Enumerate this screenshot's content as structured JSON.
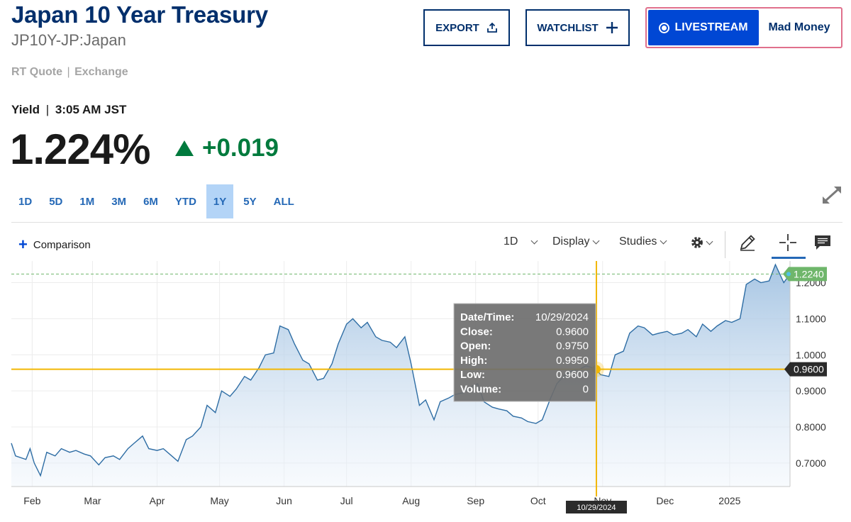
{
  "header": {
    "title": "Japan 10 Year Treasury",
    "symbol": "JP10Y-JP:Japan",
    "rt_quote": "RT Quote",
    "exchange": "Exchange"
  },
  "actions": {
    "export_label": "EXPORT",
    "watchlist_label": "WATCHLIST",
    "livestream_label": "LIVESTREAM",
    "show_name": "Mad Money"
  },
  "quote": {
    "label": "Yield",
    "time": "3:05 AM JST",
    "value": "1.224%",
    "change": "+0.019",
    "change_color": "#007a3d"
  },
  "ranges": [
    {
      "label": "1D",
      "active": false
    },
    {
      "label": "5D",
      "active": false
    },
    {
      "label": "1M",
      "active": false
    },
    {
      "label": "3M",
      "active": false
    },
    {
      "label": "6M",
      "active": false
    },
    {
      "label": "YTD",
      "active": false
    },
    {
      "label": "1Y",
      "active": true
    },
    {
      "label": "5Y",
      "active": false
    },
    {
      "label": "ALL",
      "active": false
    }
  ],
  "toolbar": {
    "comparison_label": "Comparison",
    "interval_label": "1D",
    "display_label": "Display",
    "studies_label": "Studies",
    "icons": [
      "gear-icon",
      "pencil-icon",
      "crosshair-icon",
      "comment-icon"
    ]
  },
  "tooltip": {
    "rows": [
      {
        "label": "Date/Time:",
        "value": "10/29/2024"
      },
      {
        "label": "Close:",
        "value": "0.9600"
      },
      {
        "label": "Open:",
        "value": "0.9750"
      },
      {
        "label": "High:",
        "value": "0.9950"
      },
      {
        "label": "Low:",
        "value": "0.9600"
      },
      {
        "label": "Volume:",
        "value": "0"
      }
    ]
  },
  "chart_data": {
    "type": "area",
    "ylim": [
      0.635,
      1.26
    ],
    "y_ticks": [
      "0.7000",
      "0.8000",
      "0.9000",
      "1.0000",
      "1.1000",
      "1.2000"
    ],
    "x_ticks": [
      "Feb",
      "Mar",
      "Apr",
      "May",
      "Jun",
      "Jul",
      "Aug",
      "Sep",
      "Oct",
      "Nov",
      "Dec",
      "2025"
    ],
    "x_tick_dates": [
      "2024-02-01",
      "2024-03-01",
      "2024-04-01",
      "2024-05-01",
      "2024-06-01",
      "2024-07-01",
      "2024-08-01",
      "2024-09-01",
      "2024-10-01",
      "2024-11-01",
      "2024-12-01",
      "2025-01-01"
    ],
    "x_range": [
      "2024-01-22",
      "2025-01-30"
    ],
    "grid": true,
    "line_color": "#2e6da4",
    "fill_top_color": "#9dbfe0",
    "current_value": 1.224,
    "current_label": "1.2240",
    "current_color": "#6fb66b",
    "crosshair": {
      "date": "2024-10-29",
      "value": 0.96,
      "value_label": "0.9600",
      "date_label": "10/29/2024",
      "color": "#f2b705"
    },
    "series": [
      {
        "values": [
          [
            "2024-01-22",
            0.755
          ],
          [
            "2024-01-24",
            0.72
          ],
          [
            "2024-01-29",
            0.71
          ],
          [
            "2024-01-31",
            0.74
          ],
          [
            "2024-02-02",
            0.7
          ],
          [
            "2024-02-05",
            0.665
          ],
          [
            "2024-02-08",
            0.73
          ],
          [
            "2024-02-12",
            0.72
          ],
          [
            "2024-02-15",
            0.74
          ],
          [
            "2024-02-19",
            0.73
          ],
          [
            "2024-02-22",
            0.735
          ],
          [
            "2024-02-26",
            0.725
          ],
          [
            "2024-02-29",
            0.72
          ],
          [
            "2024-03-04",
            0.695
          ],
          [
            "2024-03-07",
            0.715
          ],
          [
            "2024-03-11",
            0.72
          ],
          [
            "2024-03-14",
            0.71
          ],
          [
            "2024-03-18",
            0.74
          ],
          [
            "2024-03-21",
            0.755
          ],
          [
            "2024-03-25",
            0.775
          ],
          [
            "2024-03-28",
            0.74
          ],
          [
            "2024-04-01",
            0.735
          ],
          [
            "2024-04-04",
            0.74
          ],
          [
            "2024-04-08",
            0.72
          ],
          [
            "2024-04-11",
            0.705
          ],
          [
            "2024-04-15",
            0.765
          ],
          [
            "2024-04-18",
            0.775
          ],
          [
            "2024-04-22",
            0.8
          ],
          [
            "2024-04-25",
            0.86
          ],
          [
            "2024-04-29",
            0.84
          ],
          [
            "2024-05-02",
            0.9
          ],
          [
            "2024-05-06",
            0.885
          ],
          [
            "2024-05-09",
            0.905
          ],
          [
            "2024-05-13",
            0.94
          ],
          [
            "2024-05-16",
            0.93
          ],
          [
            "2024-05-20",
            0.965
          ],
          [
            "2024-05-23",
            1.0
          ],
          [
            "2024-05-27",
            1.005
          ],
          [
            "2024-05-30",
            1.08
          ],
          [
            "2024-06-03",
            1.07
          ],
          [
            "2024-06-06",
            1.03
          ],
          [
            "2024-06-10",
            0.985
          ],
          [
            "2024-06-13",
            0.975
          ],
          [
            "2024-06-17",
            0.93
          ],
          [
            "2024-06-20",
            0.935
          ],
          [
            "2024-06-24",
            0.975
          ],
          [
            "2024-06-27",
            1.03
          ],
          [
            "2024-07-01",
            1.085
          ],
          [
            "2024-07-04",
            1.1
          ],
          [
            "2024-07-08",
            1.075
          ],
          [
            "2024-07-11",
            1.09
          ],
          [
            "2024-07-15",
            1.05
          ],
          [
            "2024-07-18",
            1.04
          ],
          [
            "2024-07-22",
            1.035
          ],
          [
            "2024-07-25",
            1.02
          ],
          [
            "2024-07-29",
            1.05
          ],
          [
            "2024-08-01",
            0.975
          ],
          [
            "2024-08-05",
            0.86
          ],
          [
            "2024-08-08",
            0.875
          ],
          [
            "2024-08-12",
            0.82
          ],
          [
            "2024-08-15",
            0.87
          ],
          [
            "2024-08-19",
            0.88
          ],
          [
            "2024-08-22",
            0.89
          ],
          [
            "2024-08-26",
            0.895
          ],
          [
            "2024-08-29",
            0.91
          ],
          [
            "2024-09-02",
            0.92
          ],
          [
            "2024-09-05",
            0.87
          ],
          [
            "2024-09-09",
            0.855
          ],
          [
            "2024-09-12",
            0.85
          ],
          [
            "2024-09-16",
            0.845
          ],
          [
            "2024-09-19",
            0.83
          ],
          [
            "2024-09-23",
            0.825
          ],
          [
            "2024-09-26",
            0.815
          ],
          [
            "2024-09-30",
            0.81
          ],
          [
            "2024-10-03",
            0.82
          ],
          [
            "2024-10-07",
            0.88
          ],
          [
            "2024-10-10",
            0.92
          ],
          [
            "2024-10-14",
            0.945
          ],
          [
            "2024-10-17",
            0.955
          ],
          [
            "2024-10-21",
            0.96
          ],
          [
            "2024-10-24",
            0.97
          ],
          [
            "2024-10-29",
            0.96
          ],
          [
            "2024-10-31",
            0.945
          ],
          [
            "2024-11-04",
            0.94
          ],
          [
            "2024-11-07",
            1.0
          ],
          [
            "2024-11-11",
            1.01
          ],
          [
            "2024-11-14",
            1.06
          ],
          [
            "2024-11-18",
            1.08
          ],
          [
            "2024-11-21",
            1.075
          ],
          [
            "2024-11-25",
            1.055
          ],
          [
            "2024-11-28",
            1.06
          ],
          [
            "2024-12-02",
            1.065
          ],
          [
            "2024-12-05",
            1.055
          ],
          [
            "2024-12-09",
            1.06
          ],
          [
            "2024-12-12",
            1.07
          ],
          [
            "2024-12-16",
            1.05
          ],
          [
            "2024-12-19",
            1.085
          ],
          [
            "2024-12-23",
            1.065
          ],
          [
            "2024-12-26",
            1.08
          ],
          [
            "2024-12-30",
            1.095
          ],
          [
            "2025-01-02",
            1.09
          ],
          [
            "2025-01-06",
            1.1
          ],
          [
            "2025-01-09",
            1.195
          ],
          [
            "2025-01-13",
            1.21
          ],
          [
            "2025-01-16",
            1.2
          ],
          [
            "2025-01-20",
            1.205
          ],
          [
            "2025-01-23",
            1.25
          ],
          [
            "2025-01-27",
            1.2
          ],
          [
            "2025-01-30",
            1.224
          ]
        ]
      }
    ]
  }
}
